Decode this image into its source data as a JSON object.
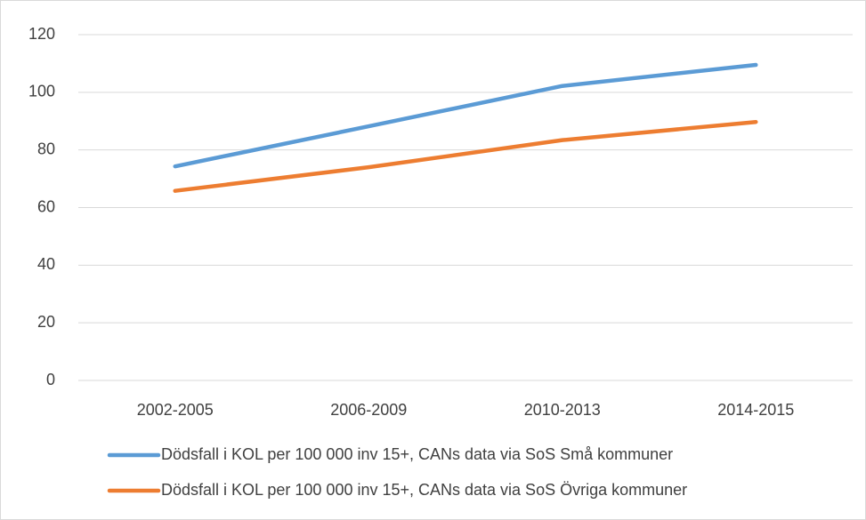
{
  "chart_data": {
    "type": "line",
    "categories": [
      "2002-2005",
      "2006-2009",
      "2010-2013",
      "2014-2015"
    ],
    "series": [
      {
        "name": "Dödsfall i KOL per 100 000 inv 15+, CANs data via SoS Små kommuner",
        "color": "#5b9bd5",
        "values": [
          74.3,
          88.2,
          102.2,
          109.5
        ]
      },
      {
        "name": "Dödsfall i KOL per 100 000 inv 15+, CANs data via SoS Övriga kommuner",
        "color": "#ed7d31",
        "values": [
          65.8,
          74,
          83.4,
          89.7
        ]
      }
    ],
    "ylim": [
      0,
      120
    ],
    "yticks": [
      0,
      20,
      40,
      60,
      80,
      100,
      120
    ],
    "grid": true,
    "legend": "bottom"
  }
}
